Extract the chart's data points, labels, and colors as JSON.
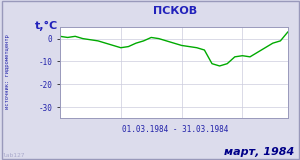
{
  "title": "ПСКОВ",
  "ylabel": "t,°C",
  "xlabel_range": "01.03.1984 - 31.03.1984",
  "bottom_label": "март, 1984",
  "watermark": "lab127",
  "source_label": "источник: гидрометцентр",
  "ylim": [
    -35,
    5
  ],
  "yticks": [
    0,
    -10,
    -20,
    -30
  ],
  "bg_color": "#dcdcec",
  "plot_bg_color": "#ffffff",
  "border_color": "#9999bb",
  "line_color": "#00aa00",
  "title_color": "#2222bb",
  "label_color": "#2222aa",
  "bottom_label_color": "#000088",
  "grid_color": "#ccccdd",
  "temperatures": [
    1.0,
    0.5,
    1.0,
    0.0,
    -0.5,
    -1.0,
    -2.0,
    -3.0,
    -4.0,
    -3.5,
    -2.0,
    -1.0,
    0.5,
    0.0,
    -1.0,
    -2.0,
    -3.0,
    -3.5,
    -4.0,
    -5.0,
    -11.0,
    -12.0,
    -11.0,
    -8.0,
    -7.5,
    -8.0,
    -6.0,
    -4.0,
    -2.0,
    -1.0,
    3.0
  ]
}
